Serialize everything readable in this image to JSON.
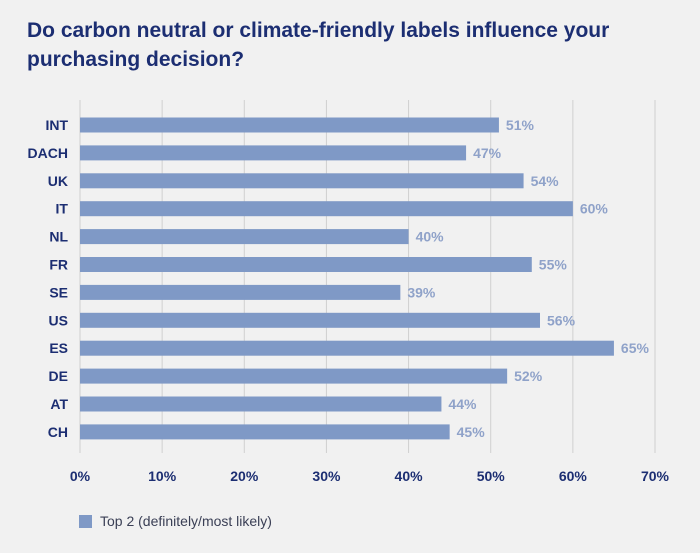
{
  "title": "Do carbon neutral or climate-friendly labels influence your purchasing decision?",
  "colors": {
    "bar": "#7f99c6",
    "title": "#1c2e72",
    "axis_text": "#1c2e72",
    "value_label": "#8fa2c9",
    "grid": "#d0d0d0",
    "background": "#f1f1f1"
  },
  "chart_data": {
    "type": "bar",
    "orientation": "horizontal",
    "title": "Do carbon neutral or climate-friendly labels influence your purchasing decision?",
    "xlabel": "",
    "ylabel": "",
    "categories": [
      "INT",
      "DACH",
      "UK",
      "IT",
      "NL",
      "FR",
      "SE",
      "US",
      "ES",
      "DE",
      "AT",
      "CH"
    ],
    "series": [
      {
        "name": "Top 2 (definitely/most likely)",
        "values": [
          51,
          47,
          54,
          60,
          40,
          55,
          39,
          56,
          65,
          52,
          44,
          45
        ]
      }
    ],
    "value_labels": [
      "51%",
      "47%",
      "54%",
      "60%",
      "40%",
      "55%",
      "39%",
      "56%",
      "65%",
      "52%",
      "44%",
      "45%"
    ],
    "xlim": [
      0,
      70
    ],
    "x_ticks": [
      0,
      10,
      20,
      30,
      40,
      50,
      60,
      70
    ],
    "x_tick_labels": [
      "0%",
      "10%",
      "20%",
      "30%",
      "40%",
      "50%",
      "60%",
      "70%"
    ],
    "grid": true,
    "legend_position": "bottom-left"
  },
  "legend": {
    "label": "Top 2 (definitely/most likely)"
  }
}
